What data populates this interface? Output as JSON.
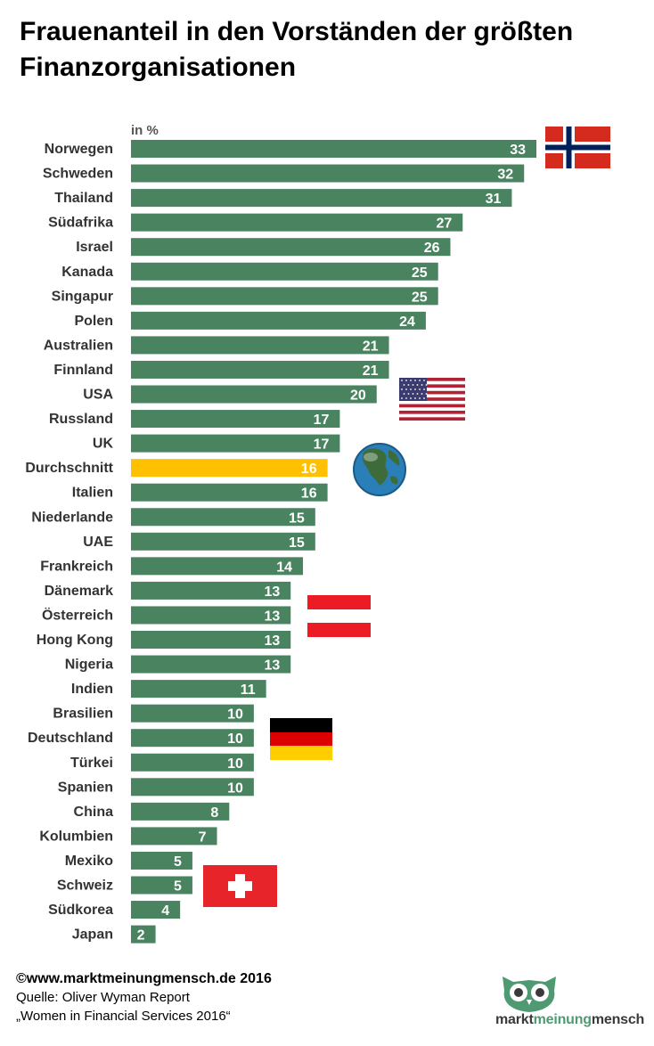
{
  "title": "Frauenanteil in den Vorständen der größten Finanzorganisationen",
  "colors": {
    "bar": "#4a8360",
    "highlight": "#ffc000",
    "label": "#ffffff",
    "category_text": "#333333"
  },
  "chart_data": {
    "type": "bar",
    "orientation": "horizontal",
    "unit_label": "in %",
    "categories": [
      "Norwegen",
      "Schweden",
      "Thailand",
      "Südafrika",
      "Israel",
      "Kanada",
      "Singapur",
      "Polen",
      "Australien",
      "Finnland",
      "USA",
      "Russland",
      "UK",
      "Durchschnitt",
      "Italien",
      "Niederlande",
      "UAE",
      "Frankreich",
      "Dänemark",
      "Österreich",
      "Hong Kong",
      "Nigeria",
      "Indien",
      "Brasilien",
      "Deutschland",
      "Türkei",
      "Spanien",
      "China",
      "Kolumbien",
      "Mexiko",
      "Schweiz",
      "Südkorea",
      "Japan"
    ],
    "values": [
      33,
      32,
      31,
      27,
      26,
      25,
      25,
      24,
      21,
      21,
      20,
      17,
      17,
      16,
      16,
      15,
      15,
      14,
      13,
      13,
      13,
      13,
      11,
      10,
      10,
      10,
      10,
      8,
      7,
      5,
      5,
      4,
      2
    ],
    "highlight": "Durchschnitt",
    "xlim": [
      0,
      33
    ],
    "flags": [
      "norway-flag",
      "usa-flag",
      "globe",
      "austria-flag",
      "germany-flag",
      "switzerland-flag"
    ]
  },
  "footer": {
    "copyright": "©www.marktmeinungmensch.de 2016",
    "source_line1": "Quelle: Oliver Wyman Report",
    "source_line2": "„Women in Financial Services 2016“"
  },
  "logo": {
    "part1": "markt",
    "part2": "meinung",
    "part3": "mensch"
  }
}
